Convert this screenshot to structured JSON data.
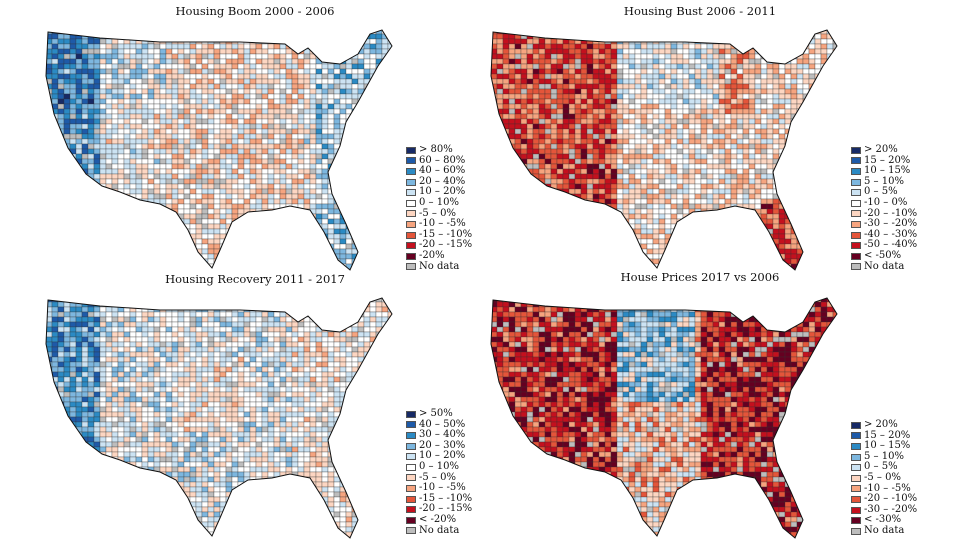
{
  "maps": [
    {
      "title": "Housing Boom 2000 - 2006",
      "legend": [
        {
          "label": "> 80%",
          "color": "#172a66"
        },
        {
          "label": "60 – 80%",
          "color": "#1e5aa8"
        },
        {
          "label": "40 – 60%",
          "color": "#2b8ac4"
        },
        {
          "label": "20 – 40%",
          "color": "#7db7df"
        },
        {
          "label": "10 – 20%",
          "color": "#cce3f3"
        },
        {
          "label": "0 – 10%",
          "color": "#ffffff"
        },
        {
          "label": "-5 – 0%",
          "color": "#fdd6c2"
        },
        {
          "label": "-10 – -5%",
          "color": "#f6a47f"
        },
        {
          "label": "-15 – -10%",
          "color": "#e4553a"
        },
        {
          "label": "-20 – -15%",
          "color": "#c4101e"
        },
        {
          "label": "-20%",
          "color": "#650021"
        },
        {
          "label": "No data",
          "color": "#bdbdbd"
        }
      ]
    },
    {
      "title": "Housing Bust 2006 - 2011",
      "legend": [
        {
          "label": "> 20%",
          "color": "#172a66"
        },
        {
          "label": "15 – 20%",
          "color": "#1e5aa8"
        },
        {
          "label": "10 – 15%",
          "color": "#2b8ac4"
        },
        {
          "label": "5 – 10%",
          "color": "#7db7df"
        },
        {
          "label": "0 – 5%",
          "color": "#cce3f3"
        },
        {
          "label": "-10 – 0%",
          "color": "#ffffff"
        },
        {
          "label": "-20 – -10%",
          "color": "#fdd6c2"
        },
        {
          "label": "-30 – -20%",
          "color": "#f6a47f"
        },
        {
          "label": "-40 – -30%",
          "color": "#e4553a"
        },
        {
          "label": "-50 – -40%",
          "color": "#c4101e"
        },
        {
          "label": "< -50%",
          "color": "#650021"
        },
        {
          "label": "No data",
          "color": "#bdbdbd"
        }
      ]
    },
    {
      "title": "Housing Recovery 2011 - 2017",
      "legend": [
        {
          "label": "> 50%",
          "color": "#172a66"
        },
        {
          "label": "40 – 50%",
          "color": "#1e5aa8"
        },
        {
          "label": "30 – 40%",
          "color": "#2b8ac4"
        },
        {
          "label": "20 – 30%",
          "color": "#7db7df"
        },
        {
          "label": "10 – 20%",
          "color": "#cce3f3"
        },
        {
          "label": "0 – 10%",
          "color": "#ffffff"
        },
        {
          "label": "-5 – 0%",
          "color": "#fdd6c2"
        },
        {
          "label": "-10 – -5%",
          "color": "#f6a47f"
        },
        {
          "label": "-15 – -10%",
          "color": "#e4553a"
        },
        {
          "label": "-20 – -15%",
          "color": "#c4101e"
        },
        {
          "label": "< -20%",
          "color": "#650021"
        },
        {
          "label": "No data",
          "color": "#bdbdbd"
        }
      ]
    },
    {
      "title": "House Prices 2017 vs 2006",
      "legend": [
        {
          "label": "> 20%",
          "color": "#172a66"
        },
        {
          "label": "15 – 20%",
          "color": "#1e5aa8"
        },
        {
          "label": "10 – 15%",
          "color": "#2b8ac4"
        },
        {
          "label": "5 – 10%",
          "color": "#7db7df"
        },
        {
          "label": "0 – 5%",
          "color": "#cce3f3"
        },
        {
          "label": "-5 – 0%",
          "color": "#fdd6c2"
        },
        {
          "label": "-10 – -5%",
          "color": "#f6a47f"
        },
        {
          "label": "-20 – -10%",
          "color": "#e4553a"
        },
        {
          "label": "-30 – -20%",
          "color": "#c4101e"
        },
        {
          "label": "< -30%",
          "color": "#650021"
        },
        {
          "label": "No data",
          "color": "#bdbdbd"
        }
      ]
    }
  ]
}
